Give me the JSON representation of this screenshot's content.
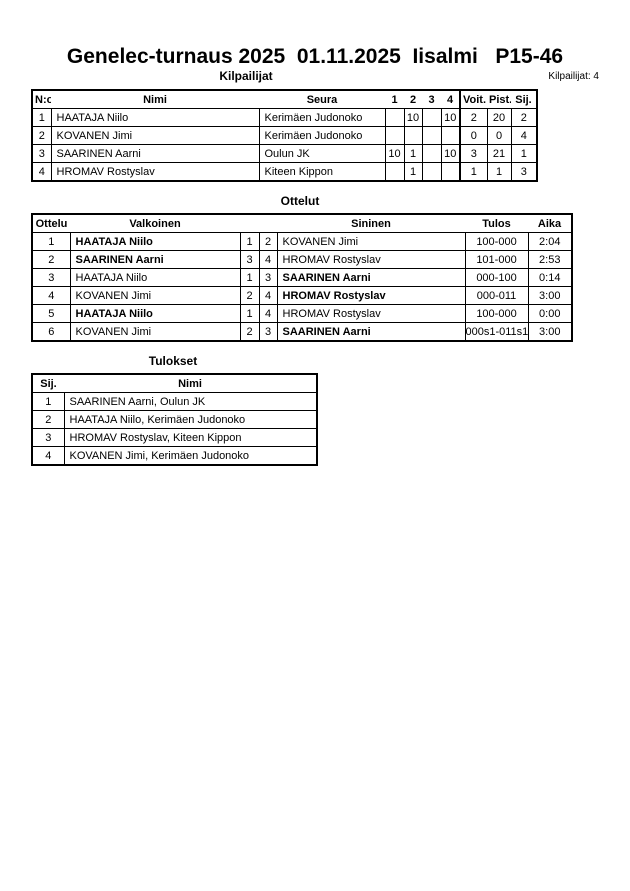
{
  "title": "Genelec-turnaus 2025  01.11.2025  Iisalmi   P15-46",
  "competitors": {
    "heading": "Kilpailijat",
    "count_label": "Kilpailijat: 4",
    "headers": [
      "N:o",
      "Nimi",
      "Seura",
      "1",
      "2",
      "3",
      "4",
      "Voit.",
      "Pist.",
      "Sij."
    ],
    "rows": [
      [
        "1",
        "HAATAJA Niilo",
        "Kerimäen Judonoko",
        "",
        "10",
        "",
        "10",
        "2",
        "20",
        "2"
      ],
      [
        "2",
        "KOVANEN Jimi",
        "Kerimäen Judonoko",
        "",
        "",
        "",
        "",
        "0",
        "0",
        "4"
      ],
      [
        "3",
        "SAARINEN Aarni",
        "Oulun JK",
        "10",
        "1",
        "",
        "10",
        "3",
        "21",
        "1"
      ],
      [
        "4",
        "HROMAV Rostyslav",
        "Kiteen Kippon",
        "",
        "1",
        "",
        "",
        "1",
        "1",
        "3"
      ]
    ]
  },
  "matches": {
    "heading": "Ottelut",
    "headers": [
      "Ottelu",
      "Valkoinen",
      "Sininen",
      "Tulos",
      "Aika"
    ],
    "rows": [
      {
        "no": "1",
        "white": "HAATAJA Niilo",
        "w": "1",
        "b": "2",
        "blue": "KOVANEN Jimi",
        "result": "100-000",
        "time": "2:04",
        "winner": "white"
      },
      {
        "no": "2",
        "white": "SAARINEN Aarni",
        "w": "3",
        "b": "4",
        "blue": "HROMAV Rostyslav",
        "result": "101-000",
        "time": "2:53",
        "winner": "white"
      },
      {
        "no": "3",
        "white": "HAATAJA Niilo",
        "w": "1",
        "b": "3",
        "blue": "SAARINEN Aarni",
        "result": "000-100",
        "time": "0:14",
        "winner": "blue"
      },
      {
        "no": "4",
        "white": "KOVANEN Jimi",
        "w": "2",
        "b": "4",
        "blue": "HROMAV Rostyslav",
        "result": "000-011",
        "time": "3:00",
        "winner": "blue"
      },
      {
        "no": "5",
        "white": "HAATAJA Niilo",
        "w": "1",
        "b": "4",
        "blue": "HROMAV Rostyslav",
        "result": "100-000",
        "time": "0:00",
        "winner": "white"
      },
      {
        "no": "6",
        "white": "KOVANEN Jimi",
        "w": "2",
        "b": "3",
        "blue": "SAARINEN Aarni",
        "result": "000s1-011s1",
        "time": "3:00",
        "winner": "blue"
      }
    ]
  },
  "results": {
    "heading": "Tulokset",
    "headers": [
      "Sij.",
      "Nimi"
    ],
    "rows": [
      [
        "1",
        "SAARINEN Aarni, Oulun JK"
      ],
      [
        "2",
        "HAATAJA Niilo, Kerimäen Judonoko"
      ],
      [
        "3",
        "HROMAV Rostyslav, Kiteen Kippon"
      ],
      [
        "4",
        "KOVANEN Jimi, Kerimäen Judonoko"
      ]
    ]
  }
}
